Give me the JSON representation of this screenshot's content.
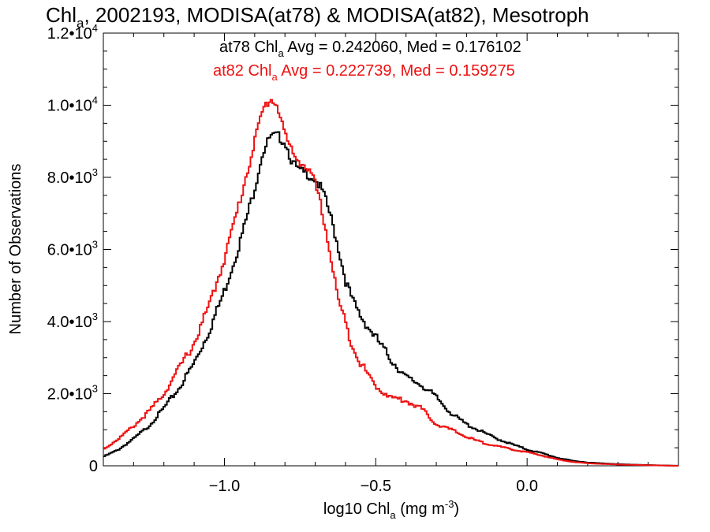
{
  "chart_data": {
    "type": "line",
    "step": true,
    "title_parts": {
      "pre": "Chl",
      "sub": "a",
      "post": ", 2002193, MODISA(at78) & MODISA(at82), Mesotroph"
    },
    "xlabel_parts": {
      "pre": "log10 Chl",
      "sub": "a",
      "mid": " (mg m",
      "sup": "-3",
      "post": ")"
    },
    "ylabel": "Number of Observations",
    "xlim": [
      -1.4,
      0.5
    ],
    "ylim": [
      0,
      12000
    ],
    "x_ticks": [
      {
        "value": -1.0,
        "label": "−1.0"
      },
      {
        "value": -0.5,
        "label": "−0.5"
      },
      {
        "value": 0.0,
        "label": "0.0"
      }
    ],
    "y_ticks": [
      {
        "value": 0,
        "mantissa": "0",
        "exp": ""
      },
      {
        "value": 2000,
        "mantissa": "2.0•10",
        "exp": "3"
      },
      {
        "value": 4000,
        "mantissa": "4.0•10",
        "exp": "3"
      },
      {
        "value": 6000,
        "mantissa": "6.0•10",
        "exp": "3"
      },
      {
        "value": 8000,
        "mantissa": "8.0•10",
        "exp": "3"
      },
      {
        "value": 10000,
        "mantissa": "1.0•10",
        "exp": "4"
      },
      {
        "value": 12000,
        "mantissa": "1.2•10",
        "exp": "4"
      }
    ],
    "annotations": [
      {
        "pre": "at78 Chl",
        "sub": "a",
        "post": " Avg = 0.242060, Med = 0.176102",
        "color": "#000000"
      },
      {
        "pre": "at82 Chl",
        "sub": "a",
        "post": " Avg = 0.222739, Med = 0.159275",
        "color": "#ee1111"
      }
    ],
    "series": [
      {
        "color": "#000000",
        "x": [
          -1.4,
          -1.35,
          -1.3,
          -1.25,
          -1.2,
          -1.15,
          -1.1,
          -1.05,
          -1.0,
          -0.95,
          -0.9,
          -0.875,
          -0.85,
          -0.825,
          -0.8,
          -0.775,
          -0.75,
          -0.725,
          -0.7,
          -0.675,
          -0.65,
          -0.625,
          -0.6,
          -0.575,
          -0.55,
          -0.5,
          -0.45,
          -0.4,
          -0.35,
          -0.3,
          -0.25,
          -0.2,
          -0.15,
          -0.1,
          -0.05,
          0.0,
          0.05,
          0.1,
          0.15,
          0.2,
          0.3,
          0.4,
          0.5
        ],
        "values": [
          250,
          450,
          750,
          1100,
          1600,
          2150,
          2850,
          3750,
          4850,
          6150,
          7700,
          8650,
          9100,
          9150,
          9000,
          8400,
          8150,
          8100,
          7950,
          7600,
          6950,
          6100,
          5150,
          4550,
          4150,
          3550,
          2950,
          2450,
          2250,
          1900,
          1450,
          1150,
          950,
          750,
          600,
          450,
          350,
          220,
          140,
          90,
          45,
          20,
          0
        ]
      },
      {
        "color": "#ee1111",
        "x": [
          -1.4,
          -1.35,
          -1.3,
          -1.25,
          -1.2,
          -1.15,
          -1.1,
          -1.05,
          -1.0,
          -0.95,
          -0.9,
          -0.875,
          -0.85,
          -0.825,
          -0.8,
          -0.775,
          -0.75,
          -0.725,
          -0.7,
          -0.675,
          -0.65,
          -0.625,
          -0.6,
          -0.575,
          -0.55,
          -0.5,
          -0.45,
          -0.4,
          -0.35,
          -0.3,
          -0.25,
          -0.2,
          -0.15,
          -0.1,
          -0.05,
          0.0,
          0.05,
          0.1,
          0.15,
          0.2,
          0.3,
          0.4,
          0.5
        ],
        "values": [
          450,
          750,
          1100,
          1500,
          2000,
          2700,
          3400,
          4450,
          5750,
          7300,
          9000,
          9800,
          10200,
          10000,
          9200,
          8650,
          8450,
          8250,
          7800,
          7000,
          5850,
          4650,
          3950,
          3300,
          2850,
          2200,
          1900,
          1800,
          1600,
          1150,
          1000,
          800,
          650,
          550,
          450,
          380,
          280,
          180,
          110,
          70,
          35,
          15,
          0
        ]
      }
    ]
  }
}
